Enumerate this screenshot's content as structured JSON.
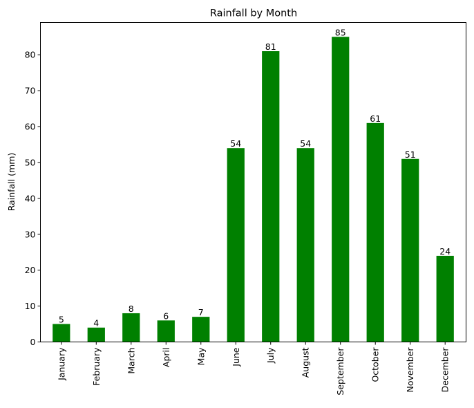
{
  "chart_data": {
    "type": "bar",
    "title": "Rainfall by Month",
    "xlabel": "",
    "ylabel": "Rainfall (mm)",
    "categories": [
      "January",
      "February",
      "March",
      "April",
      "May",
      "June",
      "July",
      "August",
      "September",
      "October",
      "November",
      "December"
    ],
    "values": [
      5,
      4,
      8,
      6,
      7,
      54,
      81,
      54,
      85,
      61,
      51,
      24
    ],
    "ylim": [
      0,
      89
    ],
    "yticks": [
      0,
      10,
      20,
      30,
      40,
      50,
      60,
      70,
      80
    ],
    "bar_color": "#008000",
    "grid": false,
    "data_labels": true
  }
}
